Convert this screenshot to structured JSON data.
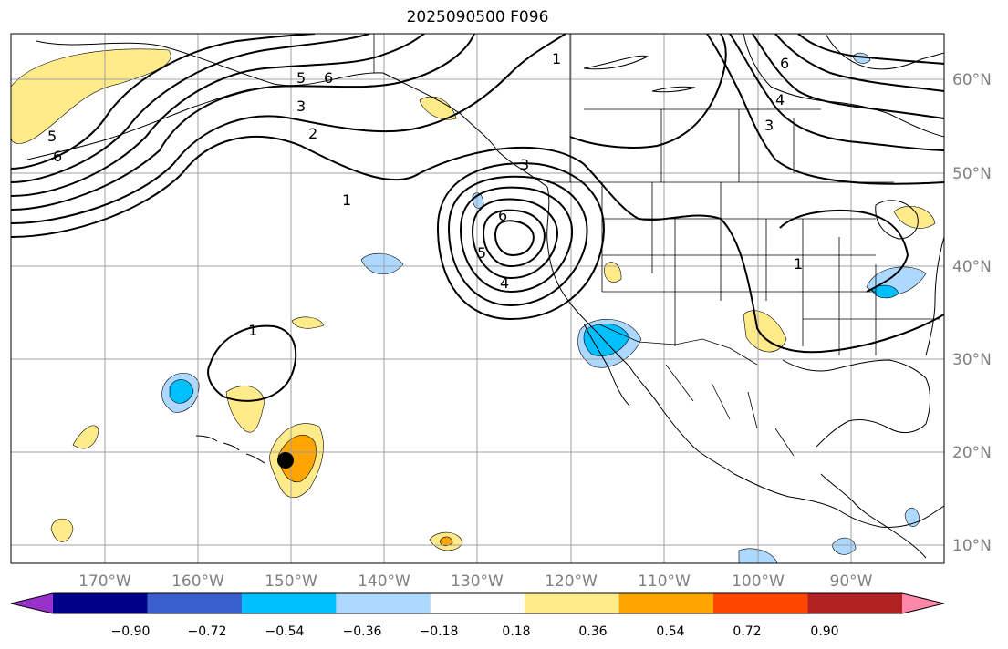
{
  "title": "2025090500 F096",
  "lon_ticks": [
    "170°W",
    "160°W",
    "150°W",
    "140°W",
    "130°W",
    "120°W",
    "110°W",
    "100°W",
    "90°W"
  ],
  "lat_ticks": [
    "60°N",
    "50°N",
    "40°N",
    "30°N",
    "20°N",
    "10°N"
  ],
  "colorbar": {
    "colors": [
      "#9932cc",
      "#00008b",
      "#3a5fcd",
      "#00bfff",
      "#add8ff",
      "#ffffff",
      "#ffeb8a",
      "#ffa500",
      "#ff4500",
      "#b22222",
      "#ff88aa"
    ],
    "tick_labels": [
      "−0.90",
      "−0.72",
      "−0.54",
      "−0.36",
      "−0.18",
      "0.18",
      "0.36",
      "0.54",
      "0.72",
      "0.90"
    ]
  },
  "contour_labels": [
    "1",
    "2",
    "3",
    "4",
    "5",
    "6"
  ],
  "marker": "black-dot"
}
